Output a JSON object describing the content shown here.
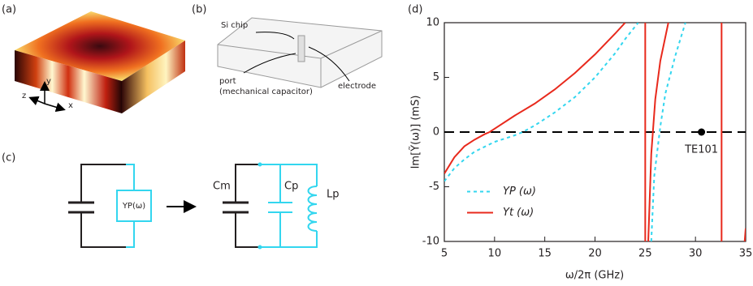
{
  "panels": {
    "a": {
      "label": "(a)",
      "axes": [
        "y",
        "z",
        "x"
      ]
    },
    "b": {
      "label": "(b)",
      "annotations": [
        "Si chip",
        "port",
        "(mechanical capacitor)",
        "electrode"
      ]
    },
    "c": {
      "label": "(c)",
      "components": [
        "YP(ω)",
        "Cm",
        "Cp",
        "Lp"
      ]
    }
  },
  "chart_data": {
    "type": "line",
    "label": "(d)",
    "xlabel": "ω/2π (GHz)",
    "ylabel": "Im[Ỹ(ω)] (mS)",
    "xlim": [
      5,
      35
    ],
    "xticks": [
      5,
      10,
      15,
      20,
      25,
      30,
      35
    ],
    "ylim": [
      -10,
      10
    ],
    "yticks": [
      -10,
      -5,
      0,
      5,
      10
    ],
    "reference_line": 0,
    "legend": "lower left",
    "series": [
      {
        "name": "YP (ω)",
        "color": "#33d6ef",
        "dash": true,
        "x": [
          5,
          6,
          7,
          8,
          10,
          12,
          12.8,
          14,
          16,
          18,
          20,
          22,
          23,
          24.3,
          25,
          25.6,
          25.9,
          26.5,
          27,
          28,
          29
        ],
        "values": [
          -4.5,
          -3.3,
          -2.5,
          -1.8,
          -0.9,
          -0.3,
          0,
          0.6,
          1.8,
          3.2,
          5,
          7.2,
          8.5,
          10,
          null,
          -10,
          -4,
          0.5,
          3.5,
          7,
          10
        ]
      },
      {
        "name": "Yt (ω)",
        "color": "#e8291c",
        "dash": false,
        "x": [
          5,
          6,
          7,
          8,
          9,
          9.5,
          10,
          12,
          14,
          16,
          18,
          20,
          22,
          23,
          24,
          25,
          25,
          25.15,
          25.3,
          25.6,
          26,
          26.5,
          27.3,
          30,
          32.6,
          32.6,
          34,
          34.9,
          35
        ],
        "values": [
          -3.8,
          -2.3,
          -1.3,
          -0.7,
          -0.2,
          0,
          0.3,
          1.5,
          2.6,
          3.9,
          5.4,
          7.1,
          9,
          10,
          null,
          -10,
          10,
          null,
          -10,
          -2,
          3,
          6.5,
          10,
          null,
          -10,
          10,
          null,
          -10,
          -8.8
        ]
      }
    ],
    "annotations": [
      {
        "text": "TE101",
        "x": 30.6,
        "y": 0
      }
    ]
  }
}
